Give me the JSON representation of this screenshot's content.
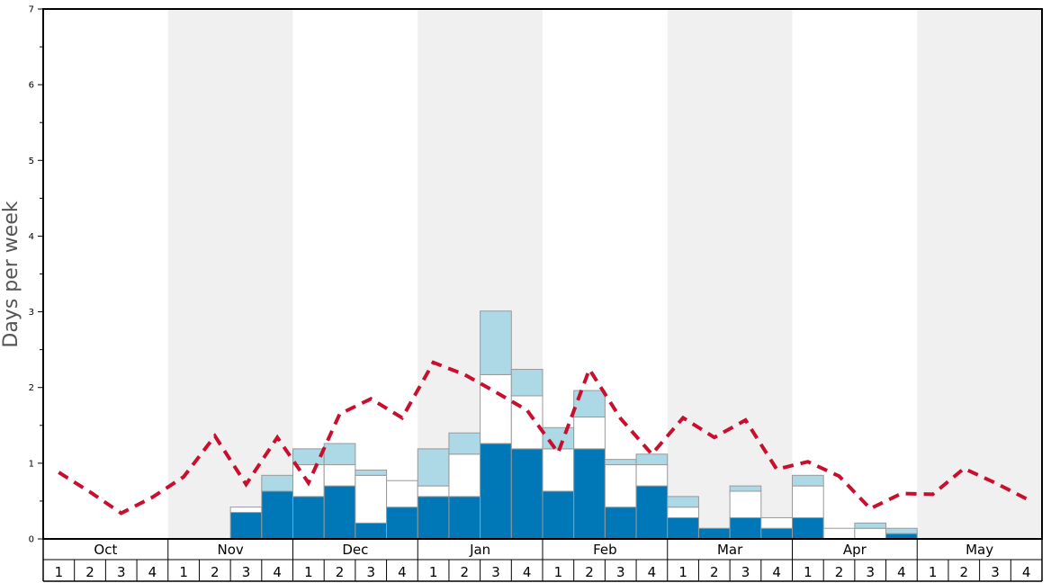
{
  "chart_data": {
    "type": "bar",
    "ylabel": "Days per week",
    "ylim": [
      0,
      7
    ],
    "yticks": [
      "0",
      "1",
      "2",
      "3",
      "4",
      "5",
      "6",
      "7"
    ],
    "months": [
      "Oct",
      "Nov",
      "Dec",
      "Jan",
      "Feb",
      "Mar",
      "Apr",
      "May"
    ],
    "week_labels": [
      "1",
      "2",
      "3",
      "4"
    ],
    "month_bands": [
      false,
      true,
      false,
      true,
      false,
      true,
      false,
      true
    ],
    "colors": {
      "bottom": "#0077b6",
      "middle": "#ffffff",
      "top": "#add8e6",
      "line": "#c8102e",
      "band": "#f0f0f0"
    },
    "series": [
      {
        "values": [
          0,
          0,
          0,
          0,
          0,
          0,
          0.35,
          0.63,
          0.56,
          0.7,
          0.21,
          0.42,
          0.56,
          0.56,
          1.26,
          1.19,
          0.63,
          1.19,
          0.42,
          0.7,
          0.28,
          0.14,
          0.28,
          0.14,
          0.28,
          0,
          0,
          0.07,
          0,
          0,
          0,
          0
        ]
      },
      {
        "values": [
          0,
          0,
          0,
          0,
          0,
          0,
          0.07,
          0,
          0.42,
          0.28,
          0.63,
          0.35,
          0.14,
          0.56,
          0.91,
          0.7,
          0.56,
          0.42,
          0.56,
          0.28,
          0.14,
          0,
          0.35,
          0.14,
          0.42,
          0.14,
          0.14,
          0,
          0,
          0,
          0,
          0
        ]
      },
      {
        "values": [
          0,
          0,
          0,
          0,
          0,
          0,
          0,
          0.21,
          0.21,
          0.28,
          0.07,
          0,
          0.49,
          0.28,
          0.84,
          0.35,
          0.28,
          0.35,
          0.07,
          0.14,
          0.14,
          0,
          0.07,
          0,
          0.14,
          0,
          0.07,
          0.07,
          0,
          0,
          0,
          0
        ]
      },
      {
        "values": [
          0.88,
          0.62,
          0.34,
          0.55,
          0.82,
          1.36,
          0.72,
          1.34,
          0.74,
          1.65,
          1.85,
          1.6,
          2.33,
          2.17,
          1.94,
          1.7,
          1.14,
          2.24,
          1.59,
          1.12,
          1.6,
          1.34,
          1.57,
          0.92,
          1.02,
          0.83,
          0.4,
          0.6,
          0.59,
          0.93,
          0.74,
          0.53
        ]
      }
    ]
  }
}
